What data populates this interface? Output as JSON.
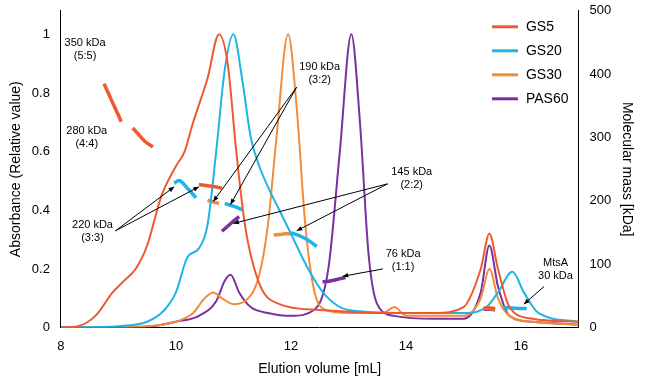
{
  "chart_data": {
    "type": "line",
    "x_label": "Elution volume [mL]",
    "y_label": "Absorbance (Relative value)",
    "y2_label": "Molecular mass [kDa]",
    "xlim": [
      8,
      17
    ],
    "xticks": [
      8,
      10,
      12,
      14,
      16
    ],
    "ylim": [
      0,
      1.08
    ],
    "yticks": [
      0,
      0.2,
      0.4,
      0.6,
      0.8,
      1
    ],
    "y2lim": [
      0,
      500
    ],
    "y2ticks": [
      0,
      100,
      200,
      300,
      400,
      500
    ],
    "grid": false,
    "legend": "top-right",
    "series": [
      {
        "name": "GS5",
        "color": "#ee5a2f",
        "x": [
          8.0,
          8.3,
          8.6,
          8.9,
          9.1,
          9.3,
          9.5,
          9.75,
          10.0,
          10.15,
          10.3,
          10.55,
          10.75,
          10.9,
          11.05,
          11.2,
          11.45,
          11.8,
          12.5,
          13.5,
          14.5,
          15.0,
          15.3,
          15.45,
          15.6,
          15.8,
          16.2,
          17.0
        ],
        "values": [
          0,
          0.005,
          0.04,
          0.12,
          0.16,
          0.2,
          0.28,
          0.45,
          0.55,
          0.6,
          0.7,
          0.85,
          1.0,
          0.9,
          0.6,
          0.35,
          0.15,
          0.08,
          0.06,
          0.05,
          0.05,
          0.07,
          0.2,
          0.32,
          0.2,
          0.07,
          0.03,
          0.02
        ],
        "mass": [
          {
            "x": [
              8.75,
              8.85,
              8.95,
              9.05
            ],
            "values": [
              385,
              365,
              345,
              325
            ]
          },
          {
            "x": [
              9.25,
              9.35,
              9.45,
              9.6
            ],
            "values": [
              315,
              305,
              295,
              285
            ]
          },
          {
            "x": [
              10.4,
              10.55,
              10.7,
              10.8
            ],
            "values": [
              226,
              224,
              222,
              220
            ]
          },
          {
            "x": [
              15.35,
              15.45,
              15.55
            ],
            "values": [
              31,
              31,
              30
            ]
          }
        ]
      },
      {
        "name": "GS20",
        "color": "#1fb4e8",
        "x": [
          8.0,
          9.0,
          9.5,
          9.8,
          10.0,
          10.2,
          10.4,
          10.55,
          10.7,
          10.85,
          11.0,
          11.15,
          11.3,
          11.45,
          11.6,
          11.8,
          12.0,
          12.3,
          12.6,
          13.0,
          14.0,
          15.0,
          15.4,
          15.6,
          15.85,
          16.05,
          16.3,
          17.0
        ],
        "values": [
          0,
          0.005,
          0.02,
          0.06,
          0.12,
          0.24,
          0.27,
          0.35,
          0.6,
          0.88,
          1.0,
          0.85,
          0.65,
          0.55,
          0.48,
          0.4,
          0.32,
          0.2,
          0.11,
          0.06,
          0.05,
          0.05,
          0.07,
          0.12,
          0.19,
          0.12,
          0.05,
          0.02
        ],
        "mass": [
          {
            "x": [
              9.97,
              10.05,
              10.2,
              10.35
            ],
            "values": [
              228,
              232,
              220,
              205
            ]
          },
          {
            "x": [
              10.85,
              10.95,
              11.05,
              11.15
            ],
            "values": [
              196,
              193,
              190,
              186
            ]
          },
          {
            "x": [
              12.0,
              12.15,
              12.3,
              12.45
            ],
            "values": [
              150,
              145,
              138,
              128
            ]
          },
          {
            "x": [
              15.7,
              15.85,
              16.0,
              16.1
            ],
            "values": [
              32,
              31,
              30,
              30
            ]
          }
        ]
      },
      {
        "name": "GS30",
        "color": "#f28c3a",
        "x": [
          8.0,
          9.5,
          10.0,
          10.3,
          10.5,
          10.65,
          10.8,
          11.0,
          11.2,
          11.45,
          11.6,
          11.75,
          11.95,
          12.1,
          12.25,
          12.4,
          12.6,
          13.0,
          13.6,
          13.8,
          14.0,
          15.0,
          15.3,
          15.45,
          15.6,
          15.8,
          16.2,
          17.0
        ],
        "values": [
          0,
          0.005,
          0.02,
          0.05,
          0.1,
          0.12,
          0.1,
          0.08,
          0.09,
          0.18,
          0.35,
          0.65,
          1.0,
          0.75,
          0.35,
          0.13,
          0.06,
          0.05,
          0.05,
          0.07,
          0.04,
          0.04,
          0.1,
          0.2,
          0.1,
          0.04,
          0.02,
          0.01
        ],
        "mass": [
          {
            "x": [
              10.55,
              10.65,
              10.75
            ],
            "values": [
              201,
              198,
              196
            ]
          },
          {
            "x": [
              11.7,
              11.8,
              11.9,
              12.0
            ],
            "values": [
              146,
              147,
              148,
              148
            ]
          },
          {
            "x": [
              15.35,
              15.45,
              15.55
            ],
            "values": [
              30,
              30,
              29
            ]
          }
        ]
      },
      {
        "name": "PAS60",
        "color": "#7a30a0",
        "x": [
          8.0,
          9.5,
          10.0,
          10.4,
          10.7,
          10.85,
          10.95,
          11.1,
          11.3,
          11.6,
          12.0,
          12.4,
          12.65,
          12.85,
          13.05,
          13.2,
          13.35,
          13.5,
          13.8,
          14.5,
          15.0,
          15.3,
          15.45,
          15.6,
          15.8,
          16.2,
          17.0
        ],
        "values": [
          0,
          0.003,
          0.02,
          0.04,
          0.09,
          0.16,
          0.18,
          0.12,
          0.07,
          0.05,
          0.04,
          0.06,
          0.2,
          0.6,
          1.0,
          0.7,
          0.25,
          0.08,
          0.04,
          0.03,
          0.03,
          0.12,
          0.28,
          0.14,
          0.04,
          0.02,
          0.01
        ],
        "mass": [
          {
            "x": [
              10.8,
              10.9,
              11.0,
              11.1
            ],
            "values": [
              152,
              160,
              168,
              175
            ]
          },
          {
            "x": [
              12.55,
              12.7,
              12.85,
              12.95
            ],
            "values": [
              72,
              74,
              77,
              79
            ]
          },
          {
            "x": [
              15.35,
              15.45,
              15.55
            ],
            "values": [
              29,
              29,
              28
            ]
          }
        ]
      }
    ],
    "annotations": [
      {
        "lines": [
          "350 kDa",
          "(5:5)"
        ]
      },
      {
        "lines": [
          "280 kDa",
          "(4:4)"
        ]
      },
      {
        "lines": [
          "220 kDa",
          "(3:3)"
        ]
      },
      {
        "lines": [
          "190 kDa",
          "(3:2)"
        ]
      },
      {
        "lines": [
          "145 kDa",
          "(2:2)"
        ]
      },
      {
        "lines": [
          "76 kDa",
          "(1:1)"
        ]
      },
      {
        "lines": [
          "MtsA",
          "30 kDa"
        ]
      }
    ]
  }
}
